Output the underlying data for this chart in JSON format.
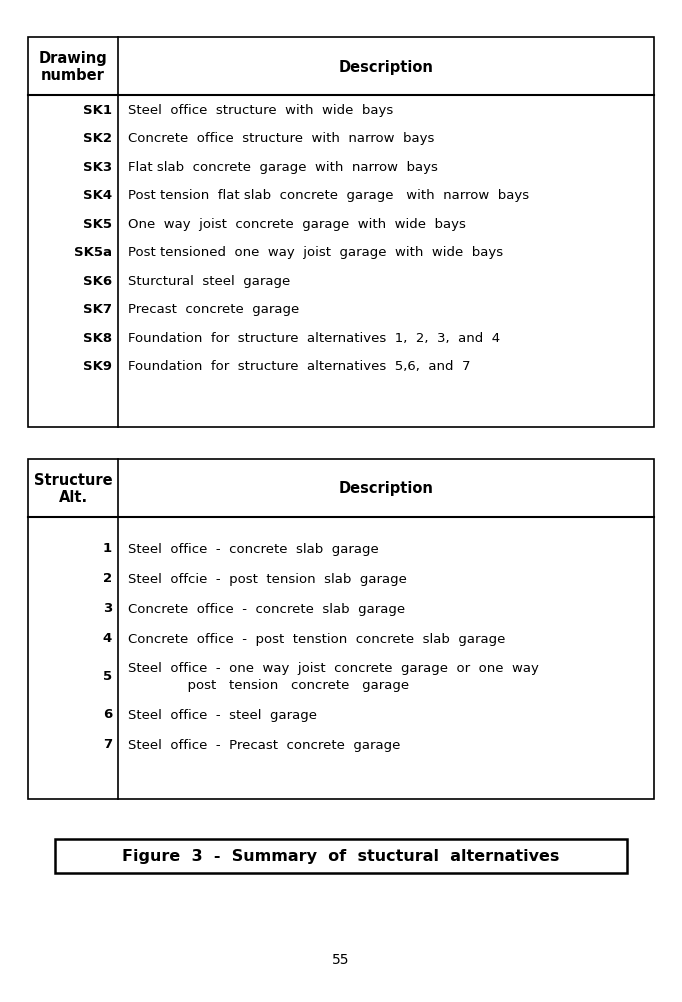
{
  "bg_color": "#ffffff",
  "page_number": "55",
  "figure_caption": "Figure  3  -  Summary  of  stuctural  alternatives",
  "table1": {
    "header_col1": "Drawing\nnumber",
    "header_col2": "Description",
    "rows": [
      [
        "SK1",
        "Steel  office  structure  with  wide  bays"
      ],
      [
        "SK2",
        "Concrete  office  structure  with  narrow  bays"
      ],
      [
        "SK3",
        "Flat slab  concrete  garage  with  narrow  bays"
      ],
      [
        "SK4",
        "Post tension  flat slab  concrete  garage   with  narrow  bays"
      ],
      [
        "SK5",
        "One  way  joist  concrete  garage  with  wide  bays"
      ],
      [
        "SK5a",
        "Post tensioned  one  way  joist  garage  with  wide  bays"
      ],
      [
        "SK6",
        "Sturctural  steel  garage"
      ],
      [
        "SK7",
        "Precast  concrete  garage"
      ],
      [
        "SK8",
        "Foundation  for  structure  alternatives  1,  2,  3,  and  4"
      ],
      [
        "SK9",
        "Foundation  for  structure  alternatives  5,6,  and  7"
      ]
    ]
  },
  "table2": {
    "header_col1": "Structure\nAlt.",
    "header_col2": "Description",
    "rows": [
      [
        "1",
        "Steel  office  -  concrete  slab  garage"
      ],
      [
        "2",
        "Steel  offcie  -  post  tension  slab  garage"
      ],
      [
        "3",
        "Concrete  office  -  concrete  slab  garage"
      ],
      [
        "4",
        "Concrete  office  -  post  tenstion  concrete  slab  garage"
      ],
      [
        "5",
        "Steel  office  -  one  way  joist  concrete  garage  or  one  way\n              post   tension   concrete   garage"
      ],
      [
        "6",
        "Steel  office  -  steel  garage"
      ],
      [
        "7",
        "Steel  office  -  Precast  concrete  garage"
      ]
    ]
  },
  "font_family": "DejaVu Sans",
  "fontsize_header": 10.5,
  "fontsize_body": 9.5,
  "fontsize_caption": 11.5,
  "fontsize_page": 10
}
